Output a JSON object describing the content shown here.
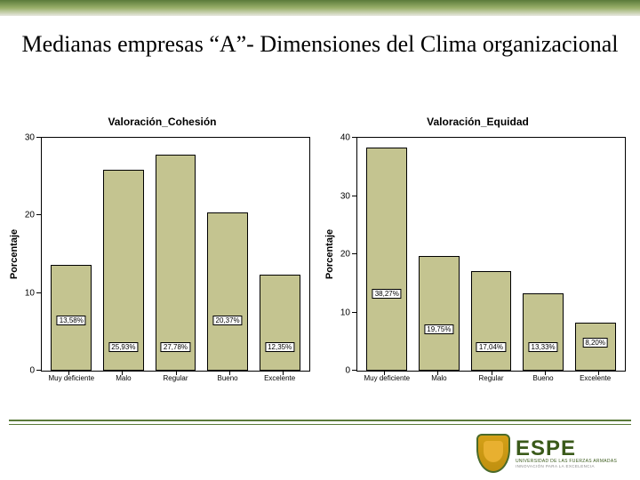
{
  "title": "Medianas empresas “A”- Dimensiones del Clima organizacional",
  "bar_color": "#c4c490",
  "background_color": "#ffffff",
  "border_color": "#000000",
  "y_axis_label": "Porcentaje",
  "charts": [
    {
      "title": "Valoración_Cohesión",
      "y_max": 30,
      "y_ticks": [
        0,
        10,
        20,
        30
      ],
      "categories": [
        "Muy deficiente",
        "Malo",
        "Regular",
        "Bueno",
        "Excelente"
      ],
      "values": [
        13.58,
        25.93,
        27.78,
        20.37,
        12.35
      ],
      "value_labels": [
        "13,58%",
        "25,93%",
        "27,78%",
        "20,37%",
        "12,35%"
      ],
      "label_offsets": [
        50,
        20,
        20,
        50,
        20
      ]
    },
    {
      "title": "Valoración_Equidad",
      "y_max": 40,
      "y_ticks": [
        0,
        10,
        20,
        30,
        40
      ],
      "categories": [
        "Muy deficiente",
        "Malo",
        "Regular",
        "Bueno",
        "Excelente"
      ],
      "values": [
        38.27,
        19.75,
        17.04,
        13.33,
        8.2
      ],
      "value_labels": [
        "38,27%",
        "19,75%",
        "17,04%",
        "13,33%",
        "8,20%"
      ],
      "label_offsets": [
        80,
        40,
        20,
        20,
        25
      ]
    }
  ],
  "logo": {
    "main": "ESPE",
    "sub": "UNIVERSIDAD DE LAS FUERZAS ARMADAS",
    "sub2": "INNOVACIÓN PARA LA EXCELENCIA"
  }
}
